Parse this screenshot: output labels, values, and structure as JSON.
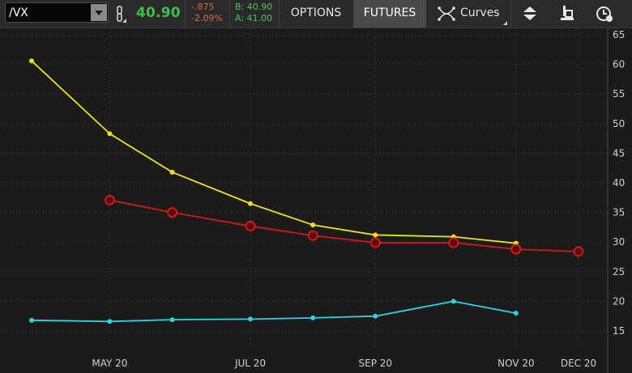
{
  "toolbar": {
    "symbol": "/VX",
    "last_price": "40.90",
    "net_change": "-.875",
    "pct_change": "-2.09%",
    "bid": "B: 40.90",
    "ask": "A: 41.00",
    "options_label": "OPTIONS",
    "futures_label": "FUTURES",
    "curves_label": "Curves",
    "colors": {
      "price": "#3fbf4c",
      "change": "#d86a45",
      "bidask": "#4ec45a"
    }
  },
  "chart_data": {
    "type": "line",
    "x_ticks": [
      "MAY 20",
      "JUL 20",
      "SEP 20",
      "NOV 20",
      "DEC 20"
    ],
    "y_ticks": [
      15,
      20,
      25,
      30,
      35,
      40,
      45,
      50,
      55,
      60,
      65
    ],
    "ylim": [
      12,
      67
    ],
    "grid": true,
    "series": [
      {
        "color": "#e8e020",
        "marker": "small-dot",
        "x": [
          "2020-04-15",
          "2020-05-20",
          "2020-06-17",
          "2020-07-22",
          "2020-08-19",
          "2020-09-16",
          "2020-10-21",
          "2020-11-18"
        ],
        "values": [
          60.6,
          48.3,
          41.8,
          36.5,
          32.9,
          31.2,
          30.9,
          29.8
        ]
      },
      {
        "color": "#d01a1a",
        "marker": "open-circle",
        "x": [
          "2020-05-20",
          "2020-06-17",
          "2020-07-22",
          "2020-08-19",
          "2020-09-16",
          "2020-10-21",
          "2020-11-18",
          "2020-12-16"
        ],
        "values": [
          37.1,
          35.0,
          32.7,
          31.1,
          29.9,
          29.9,
          28.8,
          28.4
        ]
      },
      {
        "color": "#2ad4e6",
        "marker": "small-dot",
        "x": [
          "2020-04-15",
          "2020-05-20",
          "2020-06-17",
          "2020-07-22",
          "2020-08-19",
          "2020-09-16",
          "2020-10-21",
          "2020-11-18"
        ],
        "values": [
          16.8,
          16.6,
          16.9,
          17.0,
          17.2,
          17.5,
          20.0,
          18.0
        ]
      }
    ]
  }
}
